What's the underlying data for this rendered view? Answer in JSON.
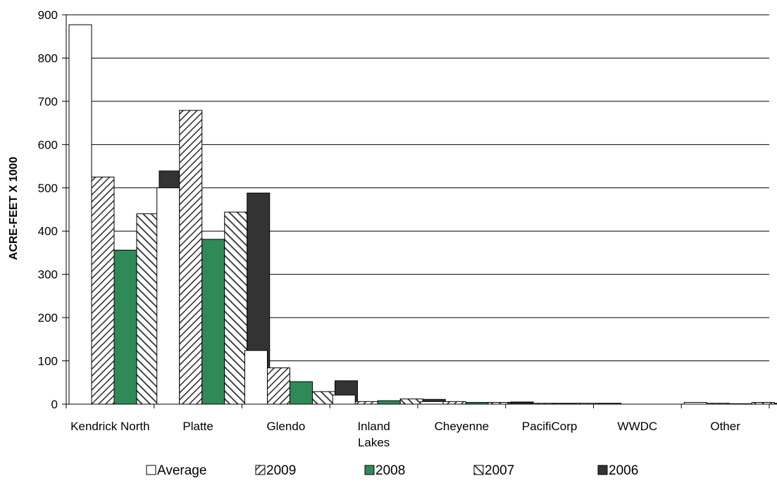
{
  "chart_data": {
    "type": "bar",
    "title": "",
    "xlabel": "",
    "ylabel": "ACRE-FEET X 1000",
    "ylim": [
      0,
      900
    ],
    "yticks": [
      0,
      100,
      200,
      300,
      400,
      500,
      600,
      700,
      800,
      900
    ],
    "grid": "horizontal",
    "legend_position": "bottom",
    "categories": [
      [
        "Kendrick North"
      ],
      [
        "Platte"
      ],
      [
        "Glendo"
      ],
      [
        "Inland",
        "Lakes"
      ],
      [
        "Cheyenne"
      ],
      [
        "PacifiCorp"
      ],
      [
        "WWDC"
      ],
      [
        "Other"
      ]
    ],
    "series": [
      {
        "name": "Average",
        "pattern": "white",
        "values": [
          877,
          500,
          124,
          21,
          6,
          2,
          0,
          4
        ]
      },
      {
        "name": "2009",
        "pattern": "hatch-forward",
        "values": [
          525,
          679,
          84,
          6,
          6,
          2,
          0,
          2
        ]
      },
      {
        "name": "2008",
        "pattern": "green",
        "color": "#2e8b57",
        "values": [
          356,
          381,
          52,
          8,
          4,
          2,
          0,
          1
        ]
      },
      {
        "name": "2007",
        "pattern": "hatch-back",
        "values": [
          440,
          444,
          29,
          12,
          4,
          2,
          0,
          4
        ]
      },
      {
        "name": "2006",
        "pattern": "dark",
        "color": "#333333",
        "values": [
          539,
          488,
          54,
          11,
          5,
          2,
          0,
          2
        ]
      }
    ]
  }
}
